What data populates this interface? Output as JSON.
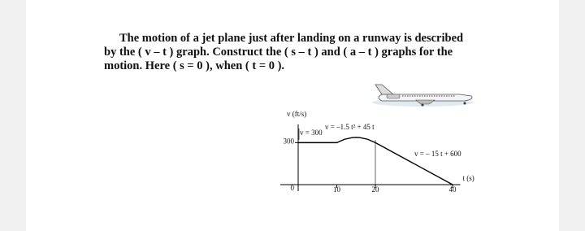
{
  "problem": {
    "lines": [
      "The motion of a jet plane just after landing on a runway is described",
      "by the ( v – t ) graph. Construct the ( s – t ) and ( a – t ) graphs for the",
      "motion. Here ( s = 0 ), when ( t = 0 )."
    ]
  },
  "chart_data": {
    "type": "line",
    "y_label": "v (ft/s)",
    "x_label": "t (s)",
    "x": [
      0,
      10,
      12,
      14,
      15,
      16,
      18,
      20,
      40
    ],
    "values": [
      300,
      300,
      324,
      336,
      337.5,
      336,
      324,
      300,
      0
    ],
    "color": "#000000",
    "xlim": [
      0,
      42
    ],
    "ylim": [
      0,
      430
    ],
    "xticks": [
      10,
      20,
      40
    ],
    "yticks": [
      0,
      300
    ],
    "annotations": [
      "v = 300",
      "v = –1.5 t² + 45 t",
      "v = – 15 t + 600"
    ]
  }
}
